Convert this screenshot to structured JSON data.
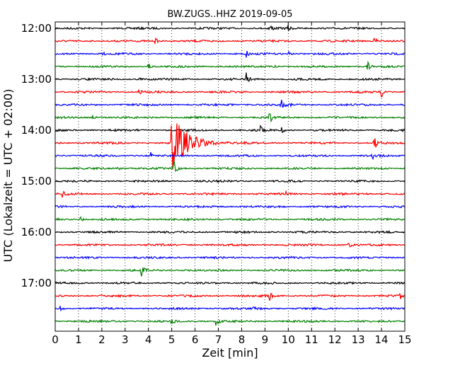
{
  "chart_data": {
    "type": "line",
    "title": "BW.ZUGS..HHZ 2019-09-05",
    "xlabel": "Zeit  [min]",
    "ylabel": "UTC (Lokalzeit = UTC + 02:00)",
    "xlim": [
      0,
      15
    ],
    "x_ticks": [
      0,
      1,
      2,
      3,
      4,
      5,
      6,
      7,
      8,
      9,
      10,
      11,
      12,
      13,
      14,
      15
    ],
    "y_tick_labels": [
      "12:00",
      "13:00",
      "14:00",
      "15:00",
      "16:00",
      "17:00"
    ],
    "grid": "x-dotted",
    "trace_colors": [
      "#000000",
      "#ff0000",
      "#0000ff",
      "#008000"
    ],
    "series": [
      {
        "start": "12:00",
        "color": "#000000",
        "events": [
          {
            "t": 9.2,
            "amp": 7
          },
          {
            "t": 10.0,
            "amp": 4
          }
        ]
      },
      {
        "start": "12:15",
        "color": "#ff0000",
        "events": [
          {
            "t": 4.3,
            "amp": 4
          },
          {
            "t": 13.7,
            "amp": 8
          }
        ]
      },
      {
        "start": "12:30",
        "color": "#0000ff",
        "events": [
          {
            "t": 2.0,
            "amp": 3
          },
          {
            "t": 8.2,
            "amp": 6
          },
          {
            "t": 10.0,
            "amp": 3
          }
        ]
      },
      {
        "start": "12:45",
        "color": "#008000",
        "events": [
          {
            "t": 4.0,
            "amp": 7
          },
          {
            "t": 13.4,
            "amp": 8
          },
          {
            "t": 9.4,
            "amp": 3
          }
        ]
      },
      {
        "start": "13:00",
        "color": "#000000",
        "events": [
          {
            "t": 8.2,
            "amp": 9
          },
          {
            "t": 3.6,
            "amp": 3
          }
        ]
      },
      {
        "start": "13:15",
        "color": "#ff0000",
        "events": [
          {
            "t": 3.6,
            "amp": 7
          },
          {
            "t": 14.0,
            "amp": 7
          }
        ]
      },
      {
        "start": "13:30",
        "color": "#0000ff",
        "events": [
          {
            "t": 9.7,
            "amp": 7
          },
          {
            "t": 10.0,
            "amp": 3
          }
        ]
      },
      {
        "start": "13:45",
        "color": "#008000",
        "events": [
          {
            "t": 1.6,
            "amp": 4
          },
          {
            "t": 9.2,
            "amp": 8
          }
        ]
      },
      {
        "start": "14:00",
        "color": "#000000",
        "events": [
          {
            "t": 8.8,
            "amp": 7
          },
          {
            "t": 9.7,
            "amp": 4
          }
        ]
      },
      {
        "start": "14:15",
        "color": "#ff0000",
        "events": [
          {
            "t": 5.0,
            "amp": 40
          },
          {
            "t": 13.7,
            "amp": 10
          }
        ]
      },
      {
        "start": "14:30",
        "color": "#0000ff",
        "events": [
          {
            "t": 4.1,
            "amp": 7
          },
          {
            "t": 13.6,
            "amp": 7
          }
        ]
      },
      {
        "start": "14:45",
        "color": "#008000",
        "events": [
          {
            "t": 5.1,
            "amp": 14
          },
          {
            "t": 2.7,
            "amp": 3
          }
        ]
      },
      {
        "start": "15:00",
        "color": "#000000",
        "events": []
      },
      {
        "start": "15:15",
        "color": "#ff0000",
        "events": [
          {
            "t": 0.3,
            "amp": 5
          },
          {
            "t": 9.9,
            "amp": 3
          }
        ]
      },
      {
        "start": "15:30",
        "color": "#0000ff",
        "events": []
      },
      {
        "start": "15:45",
        "color": "#008000",
        "events": [
          {
            "t": 1.1,
            "amp": 4
          }
        ]
      },
      {
        "start": "16:00",
        "color": "#000000",
        "events": []
      },
      {
        "start": "16:15",
        "color": "#ff0000",
        "events": [
          {
            "t": 12.6,
            "amp": 7
          }
        ]
      },
      {
        "start": "16:30",
        "color": "#0000ff",
        "events": []
      },
      {
        "start": "16:45",
        "color": "#008000",
        "events": [
          {
            "t": 3.7,
            "amp": 8
          }
        ]
      },
      {
        "start": "17:00",
        "color": "#000000",
        "events": []
      },
      {
        "start": "17:15",
        "color": "#ff0000",
        "events": [
          {
            "t": 9.2,
            "amp": 7
          },
          {
            "t": 14.8,
            "amp": 4
          }
        ]
      },
      {
        "start": "17:30",
        "color": "#0000ff",
        "events": [
          {
            "t": 0.2,
            "amp": 4
          },
          {
            "t": 8.5,
            "amp": 3
          }
        ]
      },
      {
        "start": "17:45",
        "color": "#008000",
        "events": [
          {
            "t": 5.0,
            "amp": 5
          },
          {
            "t": 6.9,
            "amp": 7
          }
        ]
      }
    ]
  }
}
